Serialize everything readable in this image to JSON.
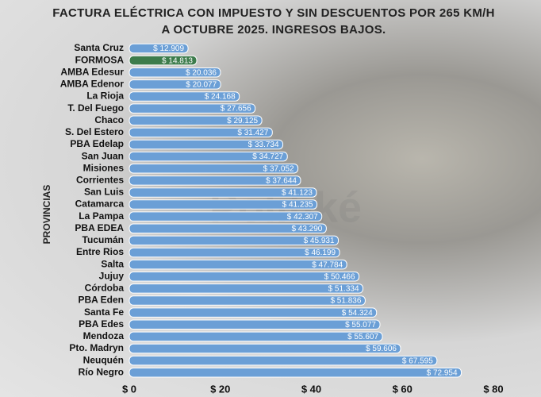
{
  "chart_data": {
    "type": "hbar",
    "title": "FACTURA ELÉCTRICA CON IMPUESTO Y SIN DESCUENTOS POR 265 KM/H A OCTUBRE 2025. INGRESOS BAJOS.",
    "y_label": "PROVINCIAS",
    "watermark": "Politiké",
    "categories": [
      "Santa Cruz",
      "FORMOSA",
      "AMBA Edesur",
      "AMBA Edenor",
      "La Rioja",
      "T. Del Fuego",
      "Chaco",
      "S. Del Estero",
      "PBA Edelap",
      "San Juan",
      "Misiones",
      "Corrientes",
      "San Luis",
      "Catamarca",
      "La Pampa",
      "PBA EDEA",
      "Tucumán",
      "Entre Rios",
      "Salta",
      "Jujuy",
      "Córdoba",
      "PBA Eden",
      "Santa Fe",
      "PBA Edes",
      "Mendoza",
      "Pto. Madryn",
      "Neuquén",
      "Río Negro"
    ],
    "values": [
      12.909,
      14.813,
      20.036,
      20.077,
      24.168,
      27.656,
      29.125,
      31.427,
      33.734,
      34.727,
      37.052,
      37.644,
      41.123,
      41.235,
      42.307,
      43.29,
      45.931,
      46.199,
      47.784,
      50.466,
      51.334,
      51.836,
      54.324,
      55.077,
      55.607,
      59.606,
      67.595,
      72.954
    ],
    "value_labels": [
      "$ 12.909",
      "$ 14.813",
      "$ 20.036",
      "$ 20.077",
      "$ 24.168",
      "$ 27.656",
      "$ 29.125",
      "$ 31.427",
      "$ 33.734",
      "$ 34.727",
      "$ 37.052",
      "$ 37.644",
      "$ 41.123",
      "$ 41.235",
      "$ 42.307",
      "$ 43.290",
      "$ 45.931",
      "$ 46.199",
      "$ 47.784",
      "$ 50.466",
      "$ 51.334",
      "$ 51.836",
      "$ 54.324",
      "$ 55.077",
      "$ 55.607",
      "$ 59.606",
      "$ 67.595",
      "$ 72.954"
    ],
    "colors": [
      "#6b9fd6",
      "#3d7c4c",
      "#6b9fd6",
      "#6b9fd6",
      "#6b9fd6",
      "#6b9fd6",
      "#6b9fd6",
      "#6b9fd6",
      "#6b9fd6",
      "#6b9fd6",
      "#6b9fd6",
      "#6b9fd6",
      "#6b9fd6",
      "#6b9fd6",
      "#6b9fd6",
      "#6b9fd6",
      "#6b9fd6",
      "#6b9fd6",
      "#6b9fd6",
      "#6b9fd6",
      "#6b9fd6",
      "#6b9fd6",
      "#6b9fd6",
      "#6b9fd6",
      "#6b9fd6",
      "#6b9fd6",
      "#6b9fd6",
      "#6b9fd6"
    ],
    "xlim": [
      0,
      80
    ],
    "xticks": [
      {
        "value": 0,
        "label": "$ 0"
      },
      {
        "value": 20,
        "label": "$ 20"
      },
      {
        "value": 40,
        "label": "$ 40"
      },
      {
        "value": 60,
        "label": "$ 60"
      },
      {
        "value": 80,
        "label": "$ 80"
      }
    ]
  }
}
